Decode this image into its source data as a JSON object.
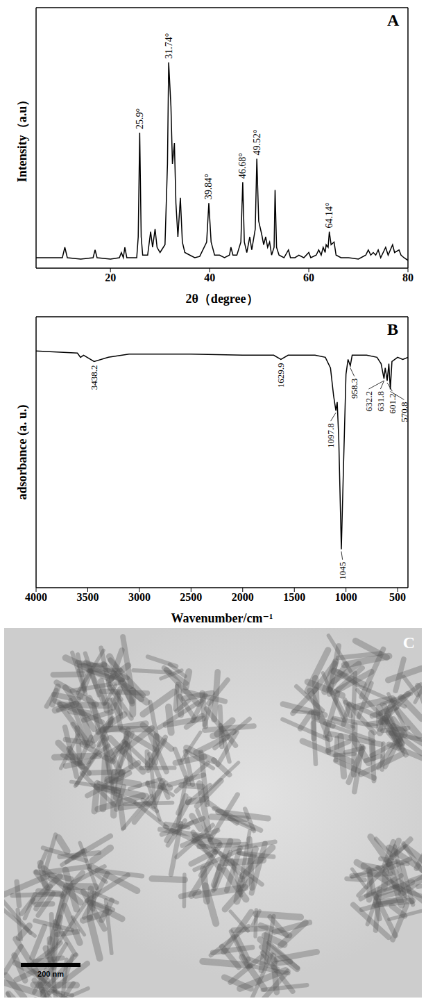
{
  "chart_data": [
    {
      "type": "line",
      "title": "A",
      "x_label": "2θ（degree）",
      "y_label": "Intensity（a.u）",
      "color": "#000000",
      "x": [
        5,
        8,
        10.3,
        10.8,
        11.3,
        14,
        16.5,
        16.9,
        17.3,
        20,
        21.8,
        22.2,
        22.6,
        22.9,
        23.3,
        25.3,
        25.6,
        25.9,
        26.2,
        26.5,
        27.5,
        28.1,
        28.5,
        29,
        29.4,
        30,
        31,
        31.5,
        31.74,
        32.2,
        32.5,
        32.9,
        33.2,
        33.6,
        34.1,
        34.5,
        35,
        36,
        37,
        38,
        39.4,
        39.84,
        40.3,
        41,
        42,
        43,
        44,
        44.3,
        44.7,
        45.5,
        46.3,
        46.68,
        47,
        47.5,
        48.1,
        48.5,
        49.2,
        49.52,
        49.9,
        50.5,
        50.9,
        51.3,
        51.7,
        52.1,
        52.5,
        53,
        53.2,
        53.5,
        54,
        55,
        55.9,
        56.3,
        57.2,
        58,
        59,
        60,
        60.4,
        61.5,
        62,
        62.5,
        62.9,
        63.3,
        63.5,
        63.9,
        64.14,
        64.5,
        65.1,
        65.5,
        66.5,
        68,
        70,
        71.5,
        72,
        72.5,
        73,
        73.5,
        74,
        74.5,
        75.5,
        76,
        76.9,
        77.3,
        78.2,
        78.6,
        79.2,
        80
      ],
      "values": [
        4,
        4,
        4,
        8,
        4,
        3.5,
        4,
        7,
        4,
        3.5,
        4,
        6,
        4,
        8,
        4,
        4,
        12,
        52,
        12,
        5,
        5,
        14,
        8,
        15,
        8,
        6,
        9,
        40,
        79,
        62,
        40,
        48,
        25,
        12,
        27,
        10,
        6,
        5,
        4,
        4.5,
        10,
        25,
        10,
        5,
        5,
        4,
        5,
        8,
        5,
        5,
        10,
        33,
        10,
        6,
        12,
        7,
        15,
        42,
        18,
        13,
        9,
        12,
        8,
        10,
        5,
        8,
        30,
        8,
        5,
        4,
        7,
        4,
        4,
        5,
        4,
        6,
        4,
        5,
        7,
        5,
        8,
        6,
        9,
        8,
        14,
        9,
        10,
        5,
        4,
        4,
        3.5,
        5,
        7,
        5,
        6,
        5,
        7,
        4,
        8,
        5,
        9,
        6,
        7,
        5,
        4,
        3
      ],
      "xlim": [
        5,
        80
      ],
      "xticks": [
        20,
        40,
        60,
        80
      ],
      "ylim": [
        0,
        100
      ],
      "tick_labels": "x",
      "annotations": [
        {
          "text": "25.9°",
          "x": 25.9
        },
        {
          "text": "31.74°",
          "x": 31.74
        },
        {
          "text": "39.84°",
          "x": 39.84
        },
        {
          "text": "46.68°",
          "x": 46.68
        },
        {
          "text": "49.52°",
          "x": 49.52
        },
        {
          "text": "64.14°",
          "x": 64.14
        }
      ]
    },
    {
      "type": "line",
      "title": "B",
      "x_label": "Wavenumber/cm⁻¹",
      "y_label": "adsorbance (a. u.)",
      "color": "#000000",
      "x": [
        4000,
        3800,
        3600,
        3570,
        3540,
        3438.2,
        3300,
        3100,
        3000,
        2500,
        2000,
        1700,
        1629.9,
        1560,
        1300,
        1200,
        1150,
        1120,
        1097.8,
        1085,
        1070,
        1045,
        1025,
        1000,
        980,
        958.3,
        940,
        800,
        700,
        660,
        632.2,
        620,
        601.2,
        585,
        570.8,
        555,
        500,
        450,
        400
      ],
      "values": [
        96,
        95.5,
        95,
        93,
        94,
        91,
        93,
        94.5,
        94.5,
        94.5,
        94,
        94,
        92,
        94,
        94,
        93,
        88,
        75,
        68,
        72,
        55,
        3,
        40,
        85,
        92,
        89,
        94,
        94,
        93,
        90,
        83,
        88,
        82,
        90,
        78,
        91,
        93,
        92,
        93
      ],
      "xlim": [
        4000,
        400
      ],
      "xticks": [
        4000,
        3500,
        3000,
        2500,
        2000,
        1500,
        1000,
        500
      ],
      "ylim": [
        -15,
        112
      ],
      "tick_labels": "x",
      "annotations": [
        {
          "text": "3438.2",
          "x": 3438.2
        },
        {
          "text": "1629.9",
          "x": 1629.9
        },
        {
          "text": "1097.8",
          "x": 1097.8
        },
        {
          "text": "1045",
          "x": 1045
        },
        {
          "text": "958.3",
          "x": 958.3
        },
        {
          "text": "632.2",
          "x": 632.2
        },
        {
          "text": "631.8",
          "x": 631.8
        },
        {
          "text": "601.2",
          "x": 601.2
        },
        {
          "text": "570.8",
          "x": 570.8
        }
      ]
    }
  ],
  "image": {
    "title": "C",
    "scale_bar": "200 nm"
  }
}
